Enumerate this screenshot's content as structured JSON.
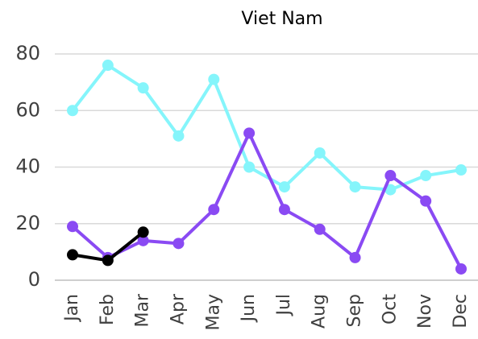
{
  "chart_data": {
    "type": "line",
    "title": "Viet Nam",
    "categories": [
      "Jan",
      "Feb",
      "Mar",
      "Apr",
      "May",
      "Jun",
      "Jul",
      "Aug",
      "Sep",
      "Oct",
      "Nov",
      "Dec"
    ],
    "series": [
      {
        "color": "#85f5fb",
        "values": [
          60,
          76,
          68,
          51,
          71,
          40,
          33,
          45,
          33,
          32,
          37,
          39
        ]
      },
      {
        "color": "#8a4af3",
        "values": [
          19,
          8,
          14,
          13,
          25,
          52,
          25,
          18,
          8,
          37,
          28,
          4
        ]
      },
      {
        "color": "#000000",
        "values": [
          9,
          7,
          17,
          null,
          null,
          null,
          null,
          null,
          null,
          null,
          null,
          null
        ]
      }
    ],
    "ylim": [
      0,
      80
    ],
    "yticks": [
      0,
      20,
      40,
      60,
      80
    ],
    "grid": true
  }
}
